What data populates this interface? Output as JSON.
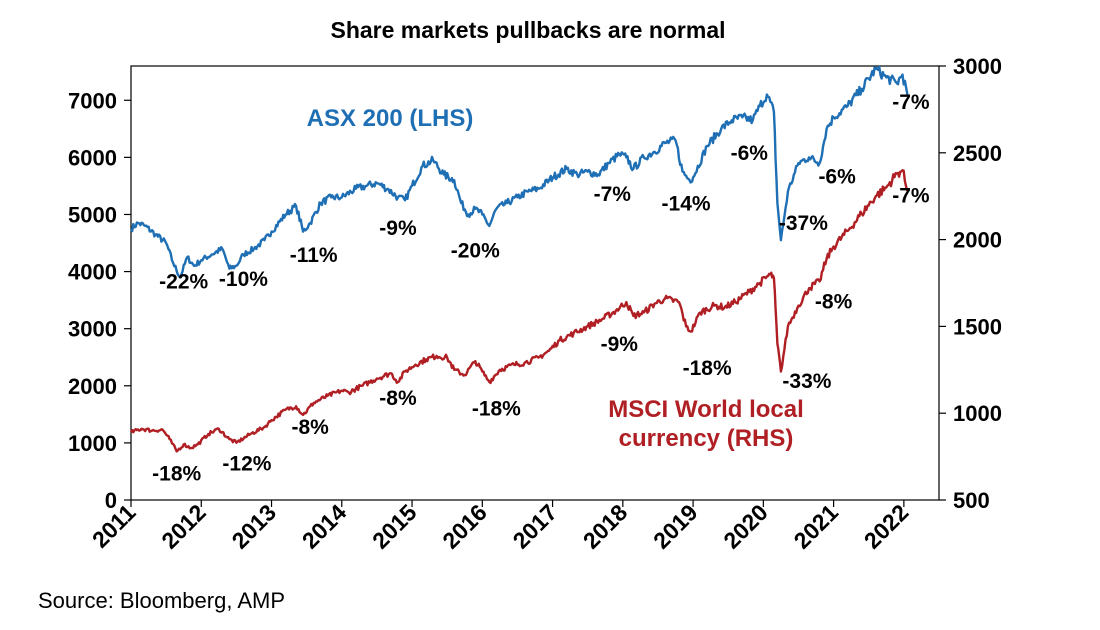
{
  "chart_data": {
    "type": "line",
    "title": "Share markets pullbacks are normal",
    "source": "Source: Bloomberg, AMP",
    "colors": {
      "asx": "#1f6fb5",
      "msci": "#b01f24"
    },
    "x_ticks": [
      "2011",
      "2012",
      "2013",
      "2014",
      "2015",
      "2016",
      "2017",
      "2018",
      "2019",
      "2020",
      "2021",
      "2022"
    ],
    "xlim": [
      2011,
      2022.5
    ],
    "left_axis": {
      "ticks": [
        "0",
        "1000",
        "2000",
        "3000",
        "4000",
        "5000",
        "6000",
        "7000"
      ],
      "ylim": [
        0,
        7600
      ]
    },
    "right_axis": {
      "ticks": [
        "500",
        "1000",
        "1500",
        "2000",
        "2500",
        "3000"
      ],
      "ylim": [
        500,
        3000
      ]
    },
    "series": [
      {
        "name": "ASX 200 (LHS)",
        "axis": "left",
        "points": [
          [
            2011.0,
            4750
          ],
          [
            2011.1,
            4850
          ],
          [
            2011.2,
            4800
          ],
          [
            2011.35,
            4650
          ],
          [
            2011.5,
            4500
          ],
          [
            2011.6,
            4150
          ],
          [
            2011.7,
            3900
          ],
          [
            2011.8,
            4250
          ],
          [
            2011.9,
            4100
          ],
          [
            2012.0,
            4200
          ],
          [
            2012.15,
            4300
          ],
          [
            2012.3,
            4400
          ],
          [
            2012.4,
            4050
          ],
          [
            2012.5,
            4100
          ],
          [
            2012.6,
            4300
          ],
          [
            2012.75,
            4400
          ],
          [
            2012.9,
            4550
          ],
          [
            2013.0,
            4700
          ],
          [
            2013.2,
            5000
          ],
          [
            2013.35,
            5150
          ],
          [
            2013.45,
            4700
          ],
          [
            2013.55,
            4850
          ],
          [
            2013.7,
            5200
          ],
          [
            2013.85,
            5300
          ],
          [
            2014.0,
            5300
          ],
          [
            2014.2,
            5450
          ],
          [
            2014.35,
            5500
          ],
          [
            2014.5,
            5550
          ],
          [
            2014.65,
            5450
          ],
          [
            2014.8,
            5300
          ],
          [
            2014.9,
            5250
          ],
          [
            2015.0,
            5500
          ],
          [
            2015.15,
            5850
          ],
          [
            2015.3,
            5950
          ],
          [
            2015.45,
            5700
          ],
          [
            2015.6,
            5600
          ],
          [
            2015.7,
            5200
          ],
          [
            2015.8,
            5000
          ],
          [
            2015.9,
            5100
          ],
          [
            2016.0,
            5000
          ],
          [
            2016.1,
            4800
          ],
          [
            2016.2,
            5100
          ],
          [
            2016.35,
            5200
          ],
          [
            2016.5,
            5300
          ],
          [
            2016.65,
            5400
          ],
          [
            2016.8,
            5450
          ],
          [
            2016.95,
            5600
          ],
          [
            2017.0,
            5650
          ],
          [
            2017.2,
            5800
          ],
          [
            2017.35,
            5700
          ],
          [
            2017.5,
            5750
          ],
          [
            2017.65,
            5700
          ],
          [
            2017.8,
            5900
          ],
          [
            2017.95,
            6050
          ],
          [
            2018.05,
            6000
          ],
          [
            2018.15,
            5800
          ],
          [
            2018.3,
            6000
          ],
          [
            2018.45,
            6100
          ],
          [
            2018.6,
            6250
          ],
          [
            2018.75,
            6300
          ],
          [
            2018.85,
            5750
          ],
          [
            2018.95,
            5600
          ],
          [
            2019.0,
            5650
          ],
          [
            2019.2,
            6200
          ],
          [
            2019.4,
            6500
          ],
          [
            2019.55,
            6650
          ],
          [
            2019.7,
            6700
          ],
          [
            2019.85,
            6650
          ],
          [
            2019.95,
            6900
          ],
          [
            2020.05,
            7100
          ],
          [
            2020.15,
            6800
          ],
          [
            2020.2,
            5200
          ],
          [
            2020.25,
            4550
          ],
          [
            2020.35,
            5400
          ],
          [
            2020.5,
            5900
          ],
          [
            2020.65,
            6000
          ],
          [
            2020.8,
            5900
          ],
          [
            2020.9,
            6500
          ],
          [
            2021.0,
            6700
          ],
          [
            2021.2,
            6900
          ],
          [
            2021.4,
            7200
          ],
          [
            2021.6,
            7550
          ],
          [
            2021.75,
            7400
          ],
          [
            2021.9,
            7300
          ],
          [
            2021.98,
            7450
          ],
          [
            2022.05,
            7100
          ]
        ]
      },
      {
        "name": "MSCI World local currency (RHS)",
        "axis": "right",
        "points": [
          [
            2011.0,
            890
          ],
          [
            2011.15,
            910
          ],
          [
            2011.3,
            900
          ],
          [
            2011.45,
            905
          ],
          [
            2011.55,
            850
          ],
          [
            2011.65,
            780
          ],
          [
            2011.75,
            820
          ],
          [
            2011.85,
            800
          ],
          [
            2011.95,
            820
          ],
          [
            2012.1,
            880
          ],
          [
            2012.25,
            910
          ],
          [
            2012.4,
            850
          ],
          [
            2012.5,
            830
          ],
          [
            2012.7,
            880
          ],
          [
            2012.9,
            920
          ],
          [
            2013.0,
            960
          ],
          [
            2013.2,
            1020
          ],
          [
            2013.35,
            1040
          ],
          [
            2013.45,
            990
          ],
          [
            2013.6,
            1060
          ],
          [
            2013.8,
            1100
          ],
          [
            2014.0,
            1130
          ],
          [
            2014.1,
            1120
          ],
          [
            2014.3,
            1160
          ],
          [
            2014.5,
            1200
          ],
          [
            2014.7,
            1230
          ],
          [
            2014.8,
            1180
          ],
          [
            2014.9,
            1240
          ],
          [
            2015.05,
            1280
          ],
          [
            2015.2,
            1310
          ],
          [
            2015.35,
            1330
          ],
          [
            2015.5,
            1320
          ],
          [
            2015.6,
            1250
          ],
          [
            2015.75,
            1220
          ],
          [
            2015.9,
            1300
          ],
          [
            2016.0,
            1240
          ],
          [
            2016.1,
            1180
          ],
          [
            2016.25,
            1250
          ],
          [
            2016.45,
            1280
          ],
          [
            2016.6,
            1290
          ],
          [
            2016.8,
            1320
          ],
          [
            2016.95,
            1360
          ],
          [
            2017.1,
            1420
          ],
          [
            2017.3,
            1460
          ],
          [
            2017.5,
            1500
          ],
          [
            2017.7,
            1540
          ],
          [
            2017.9,
            1590
          ],
          [
            2018.05,
            1640
          ],
          [
            2018.15,
            1560
          ],
          [
            2018.3,
            1580
          ],
          [
            2018.45,
            1630
          ],
          [
            2018.6,
            1660
          ],
          [
            2018.8,
            1640
          ],
          [
            2018.9,
            1500
          ],
          [
            2018.97,
            1470
          ],
          [
            2019.1,
            1580
          ],
          [
            2019.3,
            1620
          ],
          [
            2019.45,
            1610
          ],
          [
            2019.6,
            1640
          ],
          [
            2019.8,
            1700
          ],
          [
            2019.95,
            1750
          ],
          [
            2020.1,
            1800
          ],
          [
            2020.15,
            1780
          ],
          [
            2020.2,
            1400
          ],
          [
            2020.25,
            1240
          ],
          [
            2020.35,
            1500
          ],
          [
            2020.5,
            1620
          ],
          [
            2020.65,
            1720
          ],
          [
            2020.8,
            1760
          ],
          [
            2020.9,
            1890
          ],
          [
            2021.0,
            1960
          ],
          [
            2021.2,
            2050
          ],
          [
            2021.4,
            2150
          ],
          [
            2021.6,
            2250
          ],
          [
            2021.75,
            2300
          ],
          [
            2021.9,
            2380
          ],
          [
            2021.98,
            2400
          ],
          [
            2022.05,
            2280
          ]
        ]
      }
    ],
    "series_labels": [
      {
        "lines": [
          "ASX 200 (LHS)"
        ],
        "color": "asx"
      },
      {
        "lines": [
          "MSCI World local",
          "currency (RHS)"
        ],
        "color": "msci"
      }
    ],
    "annotations": [
      {
        "text": "-22%",
        "x": 2011.75,
        "y": 3700,
        "axis": "left"
      },
      {
        "text": "-10%",
        "x": 2012.6,
        "y": 3750,
        "axis": "left"
      },
      {
        "text": "-11%",
        "x": 2013.6,
        "y": 4170,
        "axis": "left"
      },
      {
        "text": "-9%",
        "x": 2014.8,
        "y": 4640,
        "axis": "left"
      },
      {
        "text": "-20%",
        "x": 2015.9,
        "y": 4250,
        "axis": "left"
      },
      {
        "text": "-7%",
        "x": 2017.85,
        "y": 5240,
        "axis": "left"
      },
      {
        "text": "-14%",
        "x": 2018.9,
        "y": 5070,
        "axis": "left"
      },
      {
        "text": "-6%",
        "x": 2019.8,
        "y": 5950,
        "axis": "left"
      },
      {
        "text": "-37%",
        "x": 2020.57,
        "y": 4730,
        "axis": "left"
      },
      {
        "text": "-6%",
        "x": 2021.05,
        "y": 5540,
        "axis": "left"
      },
      {
        "text": "-7%",
        "x": 2022.1,
        "y": 6850,
        "axis": "left"
      },
      {
        "text": "-7%",
        "x": 2022.1,
        "y": 5210,
        "axis": "left"
      },
      {
        "text": "-18%",
        "x": 2011.65,
        "y": 340,
        "axis": "left"
      },
      {
        "text": "-12%",
        "x": 2012.65,
        "y": 520,
        "axis": "left"
      },
      {
        "text": "-8%",
        "x": 2013.55,
        "y": 1160,
        "axis": "left"
      },
      {
        "text": "-8%",
        "x": 2014.8,
        "y": 1660,
        "axis": "left"
      },
      {
        "text": "-18%",
        "x": 2016.2,
        "y": 1480,
        "axis": "left"
      },
      {
        "text": "-9%",
        "x": 2017.95,
        "y": 2610,
        "axis": "left"
      },
      {
        "text": "-18%",
        "x": 2019.2,
        "y": 2190,
        "axis": "left"
      },
      {
        "text": "-33%",
        "x": 2020.62,
        "y": 1960,
        "axis": "left"
      },
      {
        "text": "-8%",
        "x": 2021.0,
        "y": 3350,
        "axis": "left"
      }
    ]
  }
}
